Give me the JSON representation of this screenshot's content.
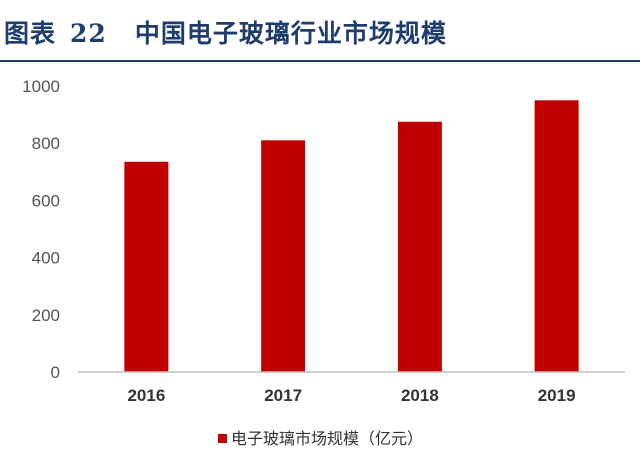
{
  "figure": {
    "label": "图表",
    "number": "22",
    "title": "中国电子玻璃行业市场规模"
  },
  "chart_data": {
    "type": "bar",
    "categories": [
      "2016",
      "2017",
      "2018",
      "2019"
    ],
    "series": [
      {
        "name": "电子玻璃市场规模（亿元）",
        "values": [
          735,
          810,
          875,
          950
        ],
        "color": "#c00000"
      }
    ],
    "yticks": [
      "0",
      "200",
      "400",
      "600",
      "800",
      "1000"
    ],
    "ylim": [
      0,
      1000
    ],
    "grid": false,
    "legend_position": "bottom"
  }
}
